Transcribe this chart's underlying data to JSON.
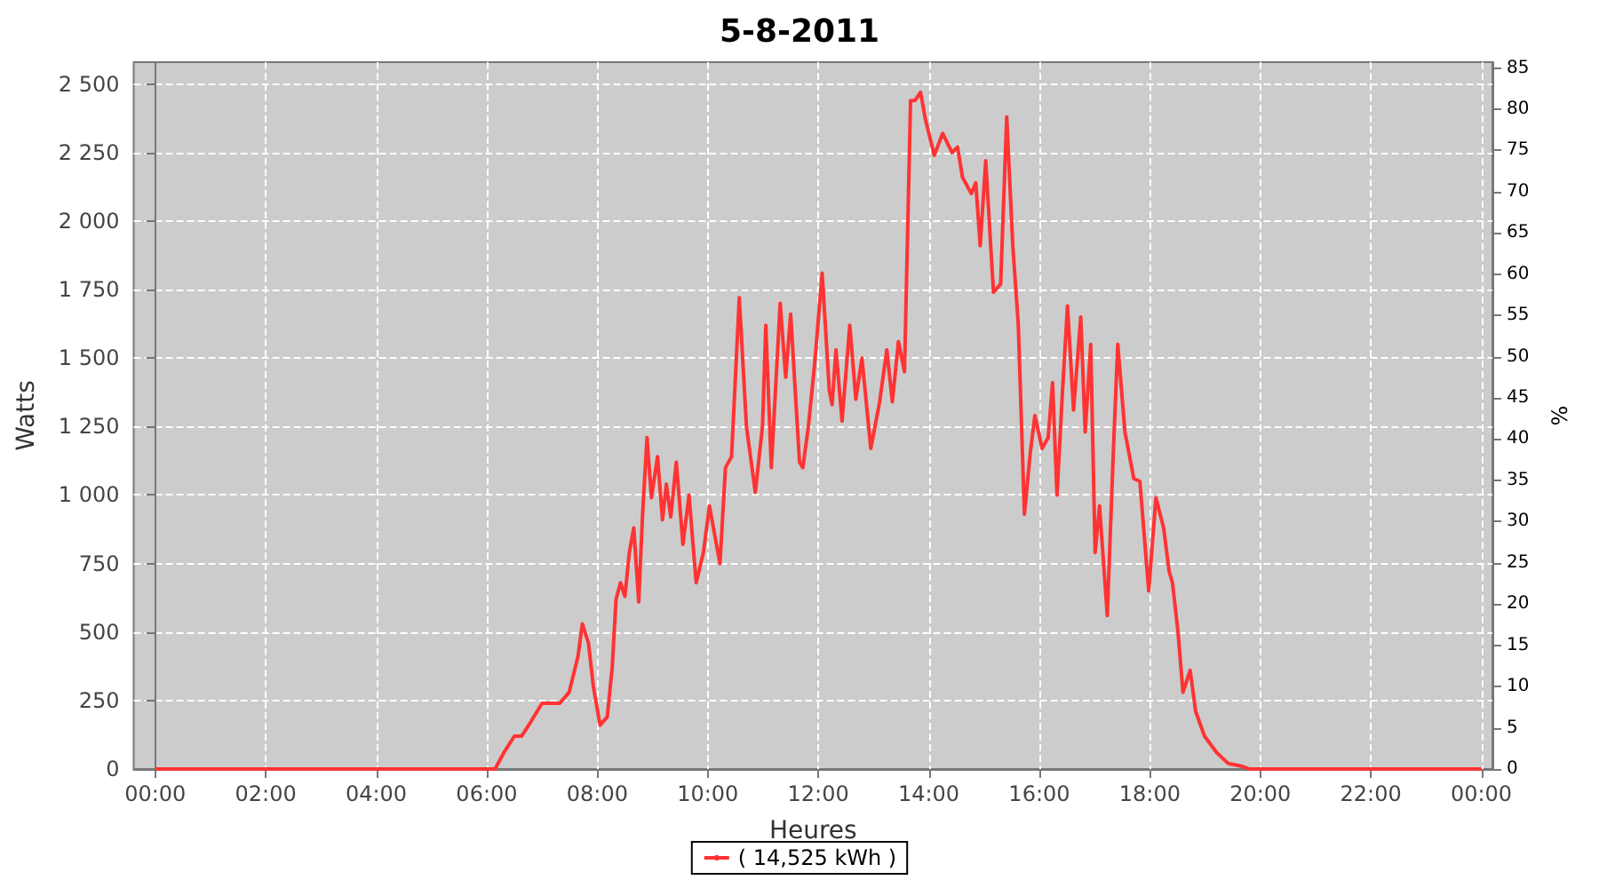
{
  "chart_data": {
    "type": "line",
    "title": "5-8-2011",
    "xlabel": "Heures",
    "ylabel": "Watts",
    "y2label": "%",
    "xlim": [
      -0.39,
      24.2
    ],
    "xticks": [
      {
        "value": 0,
        "label": "00:00"
      },
      {
        "value": 2,
        "label": "02:00"
      },
      {
        "value": 4,
        "label": "04:00"
      },
      {
        "value": 6,
        "label": "06:00"
      },
      {
        "value": 8,
        "label": "08:00"
      },
      {
        "value": 10,
        "label": "10:00"
      },
      {
        "value": 12,
        "label": "12:00"
      },
      {
        "value": 14,
        "label": "14:00"
      },
      {
        "value": 16,
        "label": "16:00"
      },
      {
        "value": 18,
        "label": "18:00"
      },
      {
        "value": 20,
        "label": "20:00"
      },
      {
        "value": 22,
        "label": "22:00"
      },
      {
        "value": 24,
        "label": "00:00"
      }
    ],
    "ylim": [
      0,
      2580
    ],
    "yticks": [
      0,
      250,
      500,
      750,
      {
        "value": 1000,
        "label": "1 000"
      },
      {
        "value": 1250,
        "label": "1 250"
      },
      {
        "value": 1500,
        "label": "1 500"
      },
      {
        "value": 1750,
        "label": "1 750"
      },
      {
        "value": 2000,
        "label": "2 000"
      },
      {
        "value": 2250,
        "label": "2 250"
      },
      {
        "value": 2500,
        "label": "2 500"
      }
    ],
    "y2lim": [
      0,
      85.7
    ],
    "y2ticks": [
      0,
      5,
      10,
      15,
      20,
      25,
      30,
      35,
      40,
      45,
      50,
      55,
      60,
      65,
      70,
      75,
      80,
      85
    ],
    "grid": true,
    "legend": "bottom",
    "marker": "none",
    "line_style": "solid",
    "series": [
      {
        "name": "( 14,525 kWh )",
        "color": "#ff3333",
        "x": [
          0,
          6.15,
          6.31,
          6.5,
          6.63,
          6.79,
          7.0,
          7.32,
          7.49,
          7.65,
          7.73,
          7.84,
          7.93,
          8.05,
          8.18,
          8.27,
          8.34,
          8.42,
          8.5,
          8.58,
          8.66,
          8.75,
          8.82,
          8.9,
          8.98,
          9.09,
          9.18,
          9.25,
          9.33,
          9.43,
          9.55,
          9.66,
          9.79,
          9.92,
          10.03,
          10.22,
          10.32,
          10.43,
          10.57,
          10.7,
          10.86,
          10.99,
          11.05,
          11.15,
          11.31,
          11.41,
          11.5,
          11.66,
          11.72,
          11.82,
          11.93,
          12.07,
          12.2,
          12.25,
          12.32,
          12.43,
          12.57,
          12.68,
          12.79,
          12.95,
          13.11,
          13.24,
          13.34,
          13.45,
          13.56,
          13.67,
          13.75,
          13.85,
          13.94,
          14.1,
          14.25,
          14.42,
          14.52,
          14.61,
          14.77,
          14.85,
          14.93,
          15.03,
          15.17,
          15.3,
          15.41,
          15.52,
          15.62,
          15.73,
          15.84,
          15.92,
          16.05,
          16.16,
          16.24,
          16.32,
          16.42,
          16.51,
          16.62,
          16.75,
          16.83,
          16.93,
          17.01,
          17.09,
          17.23,
          17.34,
          17.42,
          17.55,
          17.71,
          17.82,
          17.98,
          18.11,
          18.25,
          18.35,
          18.41,
          18.51,
          18.6,
          18.73,
          18.83,
          18.99,
          19.21,
          19.42,
          19.67,
          19.8,
          24
        ],
        "values": [
          0,
          0,
          60,
          120,
          120,
          170,
          240,
          240,
          280,
          410,
          530,
          460,
          300,
          160,
          190,
          370,
          620,
          680,
          630,
          790,
          880,
          610,
          930,
          1210,
          990,
          1140,
          910,
          1040,
          920,
          1120,
          820,
          1000,
          680,
          790,
          960,
          750,
          1100,
          1140,
          1720,
          1250,
          1010,
          1250,
          1620,
          1100,
          1700,
          1430,
          1660,
          1120,
          1100,
          1250,
          1470,
          1810,
          1380,
          1330,
          1530,
          1270,
          1620,
          1350,
          1500,
          1170,
          1340,
          1530,
          1340,
          1560,
          1450,
          2440,
          2440,
          2470,
          2370,
          2240,
          2320,
          2250,
          2270,
          2160,
          2100,
          2140,
          1910,
          2220,
          1740,
          1770,
          2380,
          1910,
          1620,
          930,
          1160,
          1290,
          1170,
          1210,
          1410,
          1000,
          1380,
          1690,
          1310,
          1650,
          1230,
          1550,
          790,
          960,
          560,
          1160,
          1550,
          1230,
          1060,
          1050,
          650,
          990,
          880,
          720,
          680,
          500,
          280,
          360,
          210,
          120,
          60,
          20,
          10,
          0,
          0
        ]
      }
    ]
  }
}
